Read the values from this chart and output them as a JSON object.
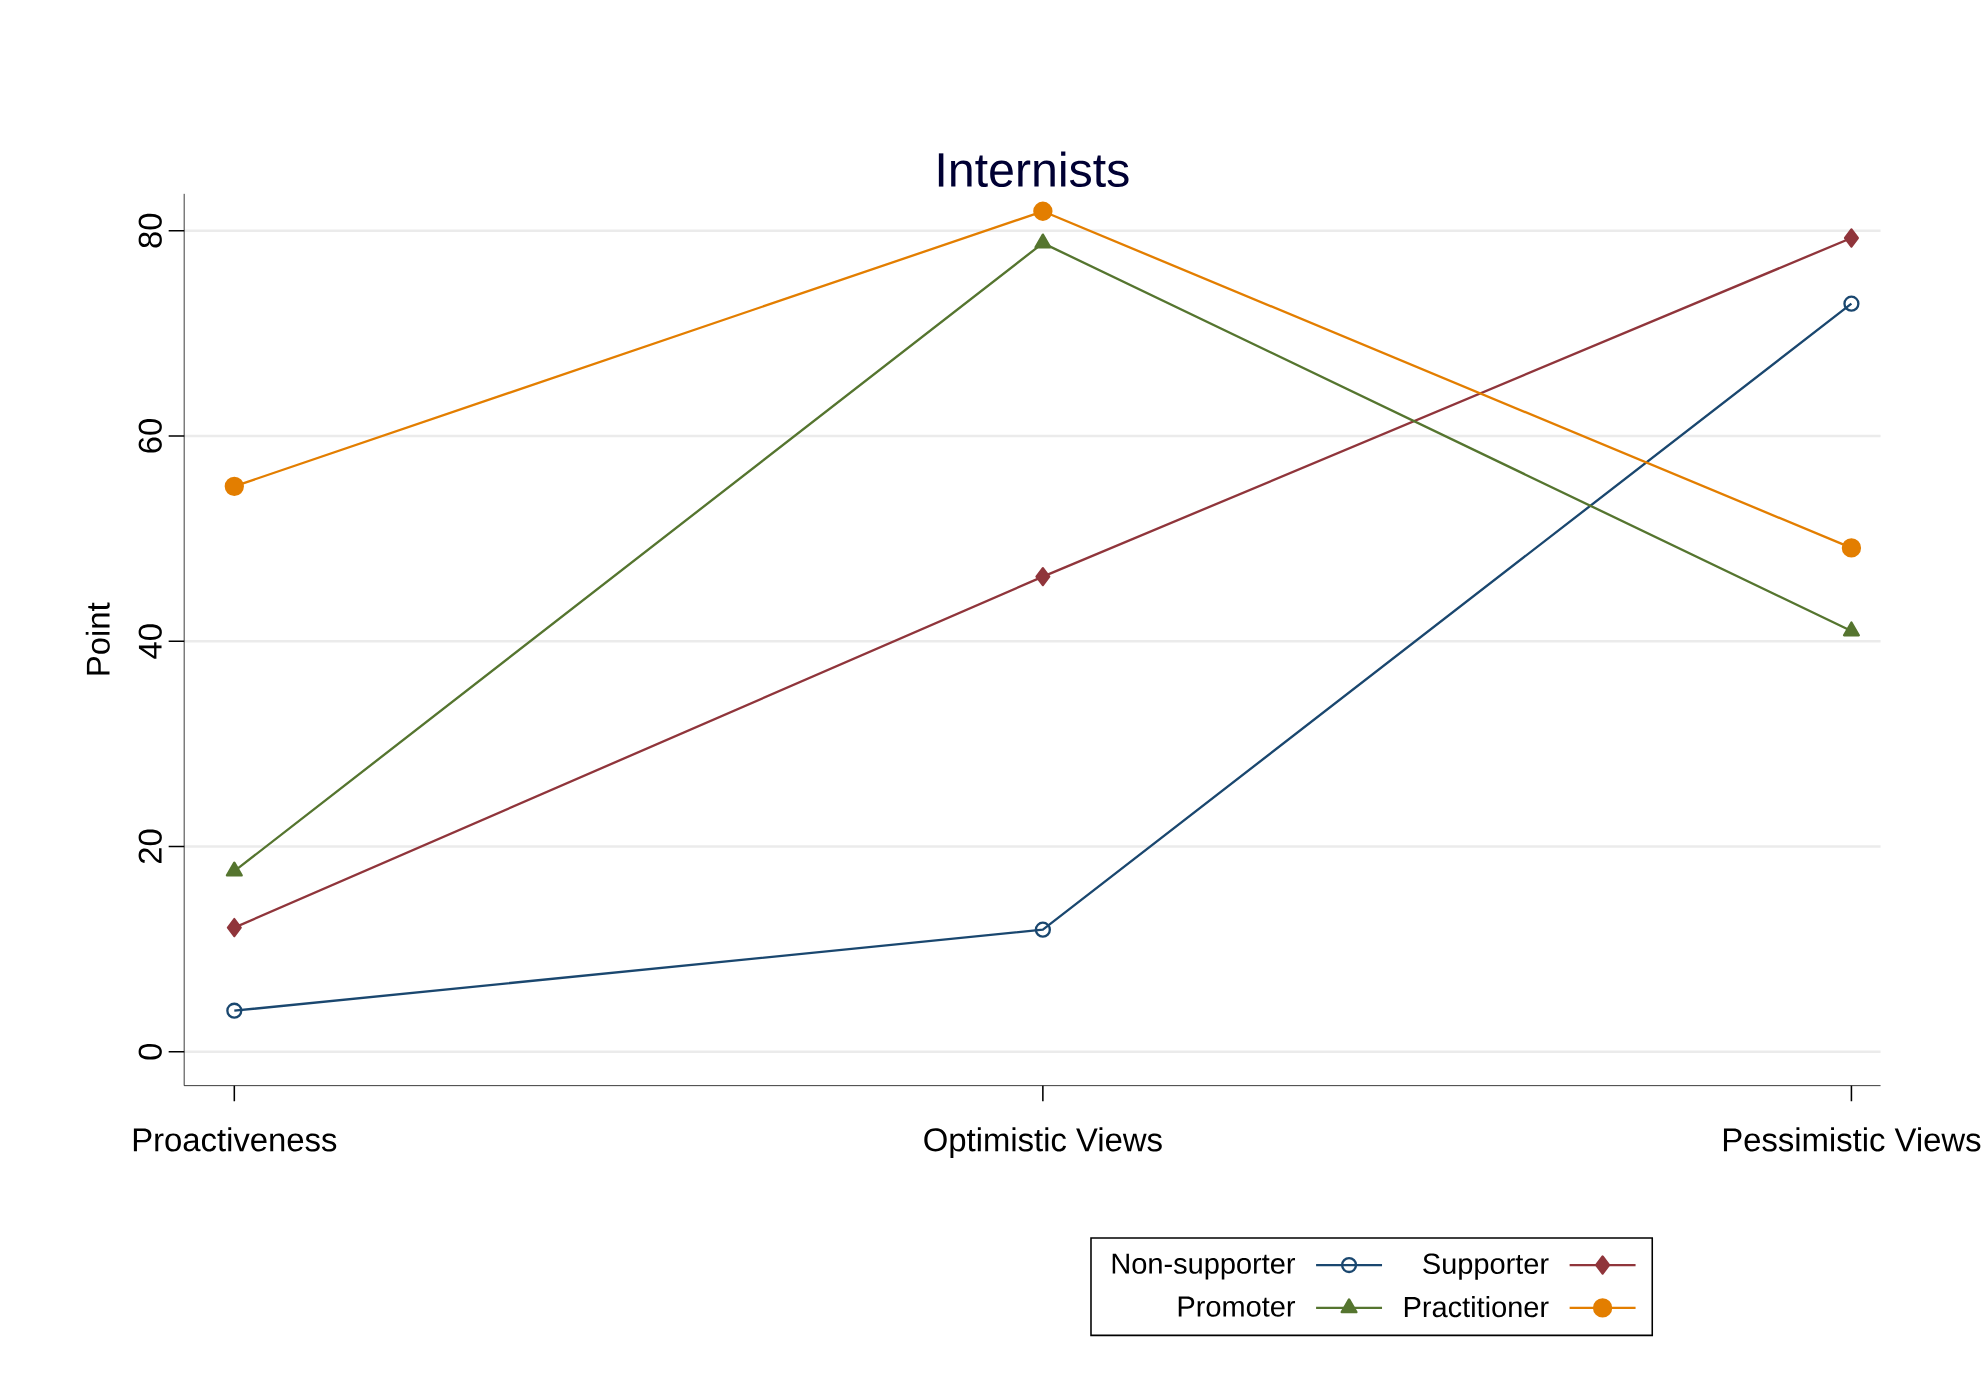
{
  "chart_data": {
    "type": "line",
    "title": "Internists",
    "ylabel": "Point",
    "categories": [
      "Proactiveness",
      "Optimistic Views",
      "Pessimistic Views"
    ],
    "ylim": [
      -3.3,
      83.6
    ],
    "yticks": [
      0,
      20,
      40,
      60,
      80
    ],
    "grid": "y",
    "legend": "bottom",
    "series": [
      {
        "name": "Non-supporter",
        "color": "#1a476f",
        "marker": "circle",
        "values": [
          4.0,
          11.9,
          72.9
        ]
      },
      {
        "name": "Supporter",
        "color": "#90353b",
        "marker": "diamond",
        "values": [
          12.1,
          46.3,
          79.3
        ]
      },
      {
        "name": "Promoter",
        "color": "#55752f",
        "marker": "triangle",
        "values": [
          17.6,
          78.8,
          41.0
        ]
      },
      {
        "name": "Practitioner",
        "color": "#e37e00",
        "marker": "circle",
        "values": [
          55.1,
          81.9,
          49.1
        ]
      }
    ]
  }
}
